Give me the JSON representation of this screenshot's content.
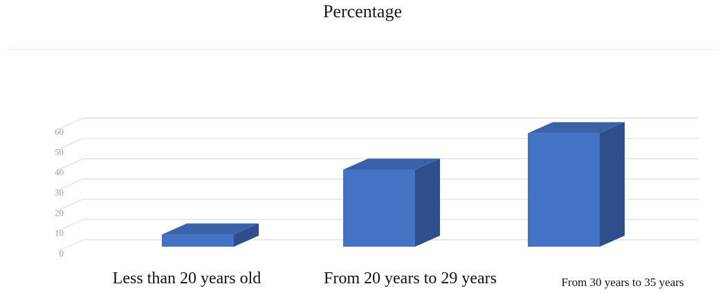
{
  "chart_data": {
    "type": "bar",
    "title": "Percentage",
    "categories": [
      "Less than 20 years old",
      "From 20 years to 29 years",
      "From 30 years to 35 years"
    ],
    "values": [
      6,
      38,
      56
    ],
    "ylim": [
      0,
      60
    ],
    "yticks": [
      "0",
      "10",
      "20",
      "30",
      "40",
      "50",
      "60"
    ],
    "grid": true,
    "xlabel": "",
    "ylabel": "",
    "colors": {
      "bar_front": "#4472C4",
      "bar_side": "#2F4F8C",
      "bar_top": "#3A62A8",
      "grid": "#e3e3e3"
    }
  }
}
